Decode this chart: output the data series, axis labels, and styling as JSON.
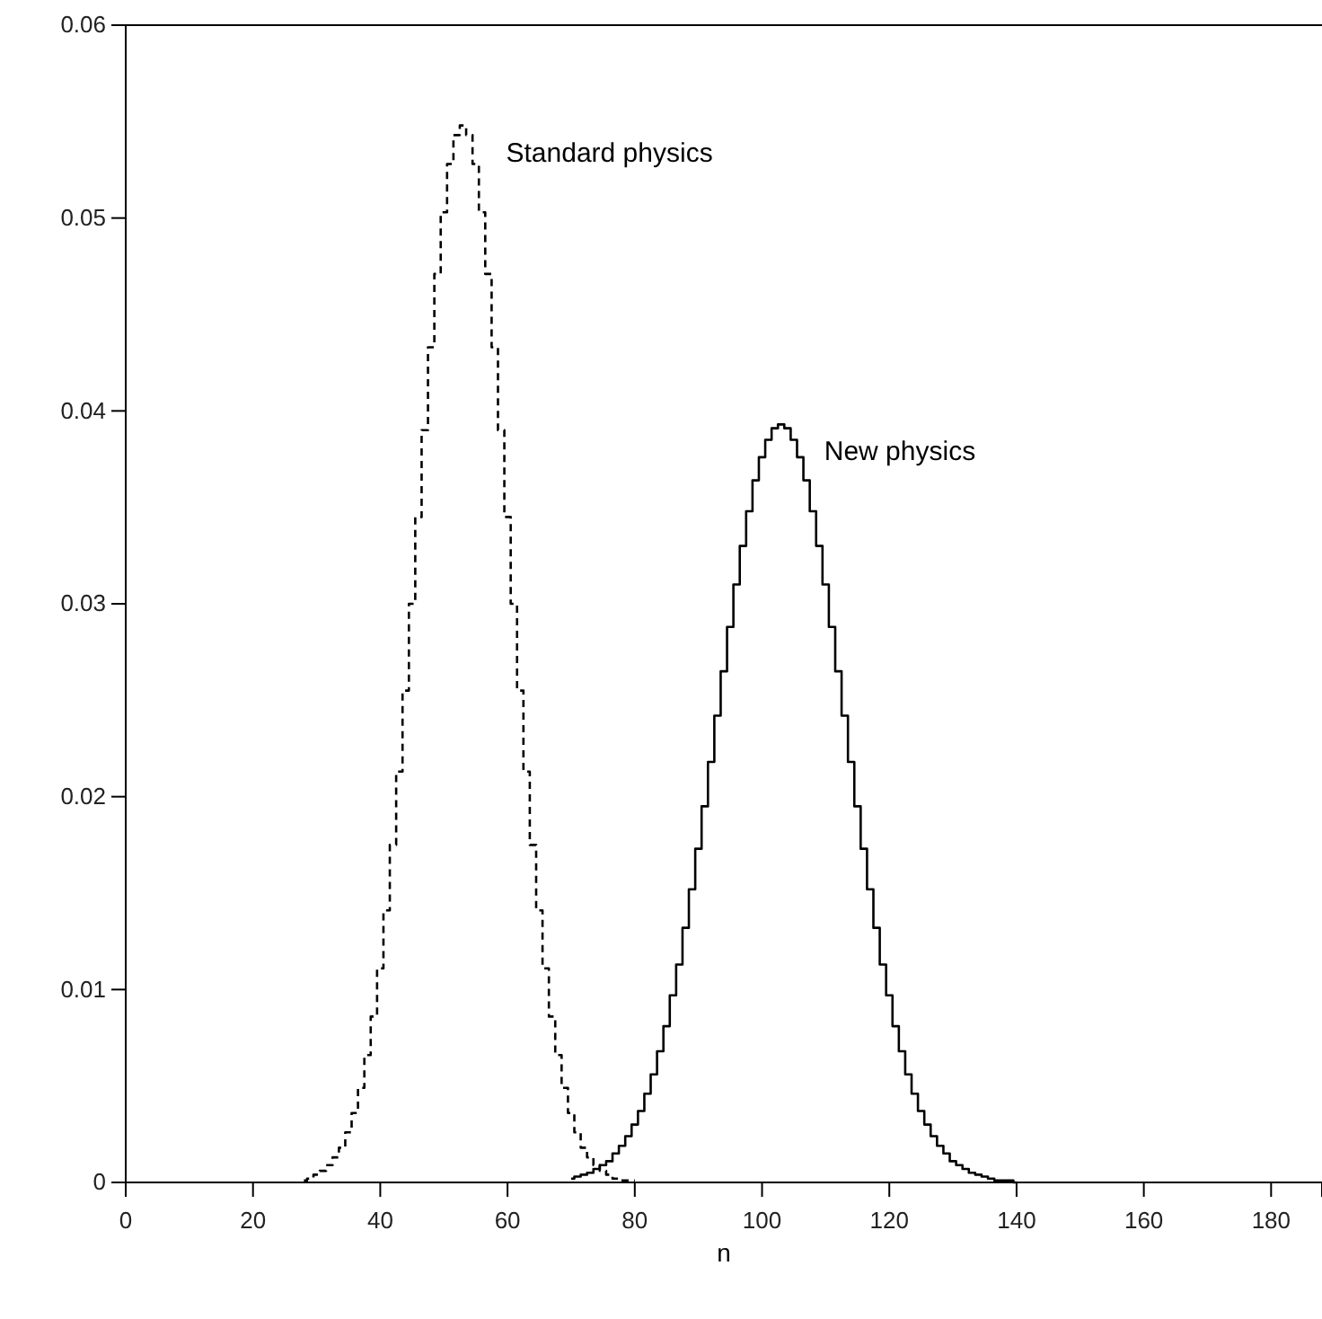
{
  "chart_data": {
    "type": "step",
    "xlabel": "n",
    "xlim": [
      0,
      188
    ],
    "ylim": [
      0,
      0.06
    ],
    "xticks": [
      0,
      20,
      40,
      60,
      80,
      100,
      120,
      140,
      160,
      180
    ],
    "yticks": [
      0,
      0.01,
      0.02,
      0.03,
      0.04,
      0.05,
      0.06
    ],
    "grid": false,
    "series": [
      {
        "name": "Standard physics",
        "color": "#000000",
        "line_style": "dashed",
        "x": [
          28,
          29,
          30,
          31,
          32,
          33,
          34,
          35,
          36,
          37,
          38,
          39,
          40,
          41,
          42,
          43,
          44,
          45,
          46,
          47,
          48,
          49,
          50,
          51,
          52,
          53,
          54,
          55,
          56,
          57,
          58,
          59,
          60,
          61,
          62,
          63,
          64,
          65,
          66,
          67,
          68,
          69,
          70,
          71,
          72,
          73,
          74,
          75,
          76,
          77,
          78,
          79,
          80
        ],
        "values": [
          0.0001,
          0.0002,
          0.0004,
          0.0006,
          0.0009,
          0.0013,
          0.0018,
          0.0026,
          0.0036,
          0.0049,
          0.0066,
          0.0086,
          0.0111,
          0.0141,
          0.0175,
          0.0213,
          0.0255,
          0.03,
          0.0345,
          0.039,
          0.0433,
          0.0471,
          0.0503,
          0.0528,
          0.0543,
          0.0548,
          0.0543,
          0.0528,
          0.0503,
          0.0471,
          0.0433,
          0.039,
          0.0345,
          0.03,
          0.0255,
          0.0213,
          0.0175,
          0.0141,
          0.0111,
          0.0086,
          0.0066,
          0.0049,
          0.0036,
          0.0026,
          0.0018,
          0.0013,
          0.0009,
          0.0006,
          0.0004,
          0.0002,
          0.0001,
          0.0001,
          0.0001
        ]
      },
      {
        "name": "New physics",
        "color": "#000000",
        "line_style": "solid",
        "x": [
          70,
          71,
          72,
          73,
          74,
          75,
          76,
          77,
          78,
          79,
          80,
          81,
          82,
          83,
          84,
          85,
          86,
          87,
          88,
          89,
          90,
          91,
          92,
          93,
          94,
          95,
          96,
          97,
          98,
          99,
          100,
          101,
          102,
          103,
          104,
          105,
          106,
          107,
          108,
          109,
          110,
          111,
          112,
          113,
          114,
          115,
          116,
          117,
          118,
          119,
          120,
          121,
          122,
          123,
          124,
          125,
          126,
          127,
          128,
          129,
          130,
          131,
          132,
          133,
          134,
          135,
          136,
          137,
          138,
          139,
          140
        ],
        "values": [
          0.0002,
          0.0003,
          0.0004,
          0.0005,
          0.0007,
          0.0009,
          0.0011,
          0.0015,
          0.0019,
          0.0024,
          0.003,
          0.0037,
          0.0046,
          0.0056,
          0.0068,
          0.0081,
          0.0097,
          0.0113,
          0.0132,
          0.0152,
          0.0173,
          0.0195,
          0.0218,
          0.0242,
          0.0265,
          0.0288,
          0.031,
          0.033,
          0.0348,
          0.0364,
          0.0376,
          0.0385,
          0.0391,
          0.0393,
          0.0391,
          0.0385,
          0.0376,
          0.0364,
          0.0348,
          0.033,
          0.031,
          0.0288,
          0.0265,
          0.0242,
          0.0218,
          0.0195,
          0.0173,
          0.0152,
          0.0132,
          0.0113,
          0.0097,
          0.0081,
          0.0068,
          0.0056,
          0.0046,
          0.0037,
          0.003,
          0.0024,
          0.0019,
          0.0015,
          0.0011,
          0.0009,
          0.0007,
          0.0005,
          0.0004,
          0.0003,
          0.0002,
          0.0001,
          0.0001,
          0.0001,
          0
        ]
      }
    ]
  }
}
